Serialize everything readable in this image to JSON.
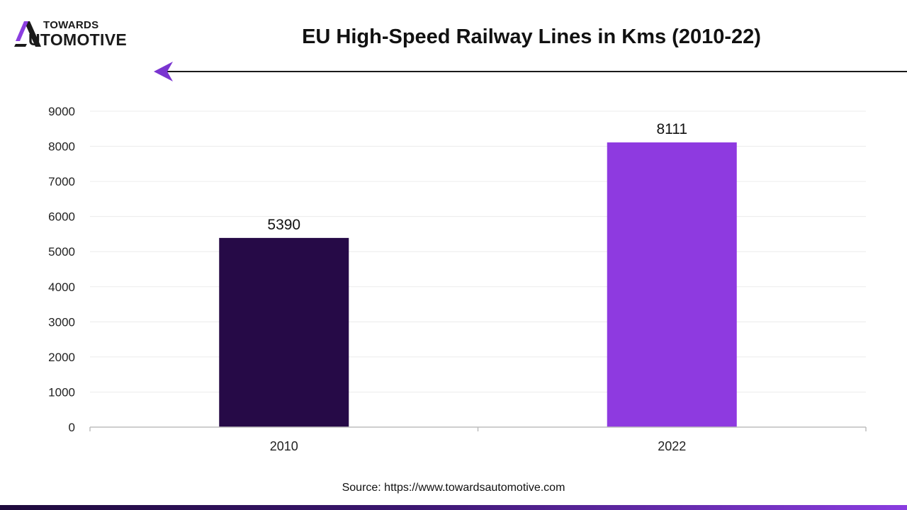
{
  "brand": {
    "top": "TOWARDS",
    "bottom": "UTOMOTIVE",
    "colors": {
      "dark": "#1a1a1a",
      "accent": "#8b3ee0"
    }
  },
  "header": {
    "title": "EU High-Speed Railway Lines in Kms (2010-22)"
  },
  "chart_data": {
    "type": "bar",
    "title": "EU High-Speed Railway Lines in Kms (2010-22)",
    "xlabel": "",
    "ylabel": "",
    "categories": [
      "2010",
      "2022"
    ],
    "values": [
      5390,
      8111
    ],
    "data_labels": [
      "5390",
      "8111"
    ],
    "bar_colors": [
      "#260a47",
      "#8e3ae0"
    ],
    "ylim": [
      0,
      9000
    ],
    "yticks": [
      0,
      1000,
      2000,
      3000,
      4000,
      5000,
      6000,
      7000,
      8000,
      9000
    ],
    "grid": true,
    "legend": "none"
  },
  "footer": {
    "source": "Source: https://www.towardsautomotive.com"
  }
}
